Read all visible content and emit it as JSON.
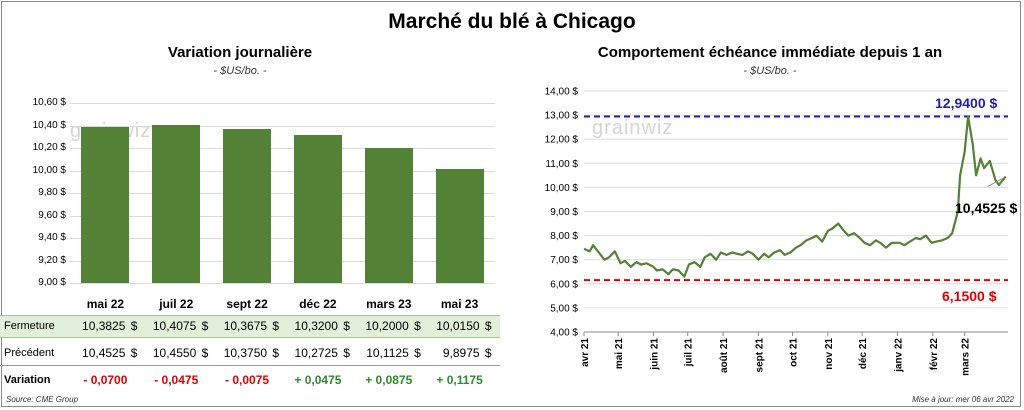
{
  "title": "Marché du blé à Chicago",
  "left_panel": {
    "title": "Variation journalière",
    "unit": "- $US/bo. -",
    "currency_symbol": "$",
    "watermark": "grainwiz",
    "rows": {
      "close_label": "Fermeture",
      "previous_label": "Précédent",
      "change_label": "Variation",
      "previous": [
        "10,4525",
        "10,4550",
        "10,3750",
        "10,2725",
        "10,1125",
        "9,8975"
      ],
      "change": [
        "- 0,0700",
        "- 0,0475",
        "- 0,0075",
        "+ 0,0475",
        "+ 0,0875",
        "+ 0,1175"
      ]
    }
  },
  "right_panel": {
    "title": "Comportement  échéance immédiate depuis 1 an",
    "unit": "- $US/bo. -",
    "watermark": "grainwiz",
    "max_label": "12,9400 $",
    "min_label": "6,1500 $",
    "last_label": "10,4525 $"
  },
  "footer": {
    "source": "Source: CME Group",
    "updated": "Mise à jour: mer 06 avr 2022"
  },
  "colors": {
    "bar": "#538135",
    "line": "#538135",
    "max_line": "#1f1fa8",
    "min_line": "#e00000",
    "negative": "#e00000",
    "positive": "#2e8a2e",
    "band": "#e2efda"
  },
  "chart_data": [
    {
      "type": "bar",
      "title": "Variation journalière",
      "ylabel": "$US/bo.",
      "categories": [
        "mai 22",
        "juil 22",
        "sept 22",
        "déc 22",
        "mars 23",
        "mai 23"
      ],
      "values": [
        10.3825,
        10.4075,
        10.3675,
        10.32,
        10.2,
        10.015
      ],
      "value_labels": [
        "10,3825",
        "10,4075",
        "10,3675",
        "10,3200",
        "10,2000",
        "10,0150"
      ],
      "ylim": [
        9.0,
        10.6
      ],
      "yticks": [
        "9,00 $",
        "9,20 $",
        "9,40 $",
        "9,60 $",
        "9,80 $",
        "10,00 $",
        "10,20 $",
        "10,40 $",
        "10,60 $"
      ],
      "grid": true
    },
    {
      "type": "line",
      "title": "Comportement  échéance immédiate depuis 1 an",
      "ylabel": "$US/bo.",
      "ylim": [
        4.0,
        14.0
      ],
      "yticks": [
        "4,00 $",
        "5,00 $",
        "6,00 $",
        "7,00 $",
        "8,00 $",
        "9,00 $",
        "10,00 $",
        "11,00 $",
        "12,00 $",
        "13,00 $",
        "14,00 $"
      ],
      "xticks": [
        "avr 21",
        "mai 21",
        "juin 21",
        "juil 21",
        "août 21",
        "sept 21",
        "oct 21",
        "nov 21",
        "déc 21",
        "janv 22",
        "févr 22",
        "mars 22"
      ],
      "max": 12.94,
      "min": 6.15,
      "last": 10.4525,
      "grid": true,
      "series": [
        {
          "x": [
            "2021-04-01",
            "2021-04-06",
            "2021-04-09",
            "2021-04-14",
            "2021-04-19",
            "2021-04-23",
            "2021-04-28",
            "2021-05-03",
            "2021-05-07",
            "2021-05-12",
            "2021-05-17",
            "2021-05-21",
            "2021-05-26",
            "2021-06-01",
            "2021-06-04",
            "2021-06-09",
            "2021-06-14",
            "2021-06-18",
            "2021-06-23",
            "2021-06-28",
            "2021-07-02",
            "2021-07-07",
            "2021-07-12",
            "2021-07-16",
            "2021-07-21",
            "2021-07-26",
            "2021-07-30",
            "2021-08-04",
            "2021-08-09",
            "2021-08-13",
            "2021-08-18",
            "2021-08-23",
            "2021-08-27",
            "2021-09-01",
            "2021-09-06",
            "2021-09-10",
            "2021-09-15",
            "2021-09-20",
            "2021-09-24",
            "2021-09-29",
            "2021-10-04",
            "2021-10-08",
            "2021-10-13",
            "2021-10-18",
            "2021-10-22",
            "2021-10-27",
            "2021-11-01",
            "2021-11-05",
            "2021-11-10",
            "2021-11-15",
            "2021-11-19",
            "2021-11-24",
            "2021-11-29",
            "2021-12-03",
            "2021-12-08",
            "2021-12-13",
            "2021-12-17",
            "2021-12-22",
            "2021-12-27",
            "2022-01-03",
            "2022-01-07",
            "2022-01-12",
            "2022-01-17",
            "2022-01-21",
            "2022-01-26",
            "2022-01-31",
            "2022-02-04",
            "2022-02-09",
            "2022-02-14",
            "2022-02-18",
            "2022-02-23",
            "2022-02-25",
            "2022-03-01",
            "2022-03-04",
            "2022-03-08",
            "2022-03-11",
            "2022-03-15",
            "2022-03-18",
            "2022-03-23",
            "2022-03-28",
            "2022-03-31",
            "2022-04-06"
          ],
          "values": [
            7.45,
            7.35,
            7.6,
            7.3,
            7.0,
            7.1,
            7.35,
            6.85,
            6.95,
            6.7,
            6.9,
            6.8,
            6.85,
            6.7,
            6.55,
            6.6,
            6.4,
            6.6,
            6.55,
            6.3,
            6.8,
            6.9,
            6.7,
            7.1,
            7.25,
            7.0,
            7.3,
            7.2,
            7.3,
            7.25,
            7.2,
            7.35,
            7.25,
            7.0,
            7.25,
            7.1,
            7.3,
            7.4,
            7.2,
            7.3,
            7.5,
            7.6,
            7.8,
            7.9,
            8.0,
            7.75,
            8.2,
            8.3,
            8.5,
            8.2,
            8.0,
            8.1,
            7.9,
            7.7,
            7.6,
            7.8,
            7.7,
            7.5,
            7.7,
            7.7,
            7.6,
            7.75,
            7.9,
            7.85,
            8.0,
            7.7,
            7.75,
            7.8,
            7.9,
            8.1,
            9.0,
            10.5,
            11.5,
            12.94,
            11.8,
            10.5,
            11.2,
            10.8,
            11.1,
            10.3,
            10.1,
            10.4525
          ]
        }
      ]
    }
  ]
}
